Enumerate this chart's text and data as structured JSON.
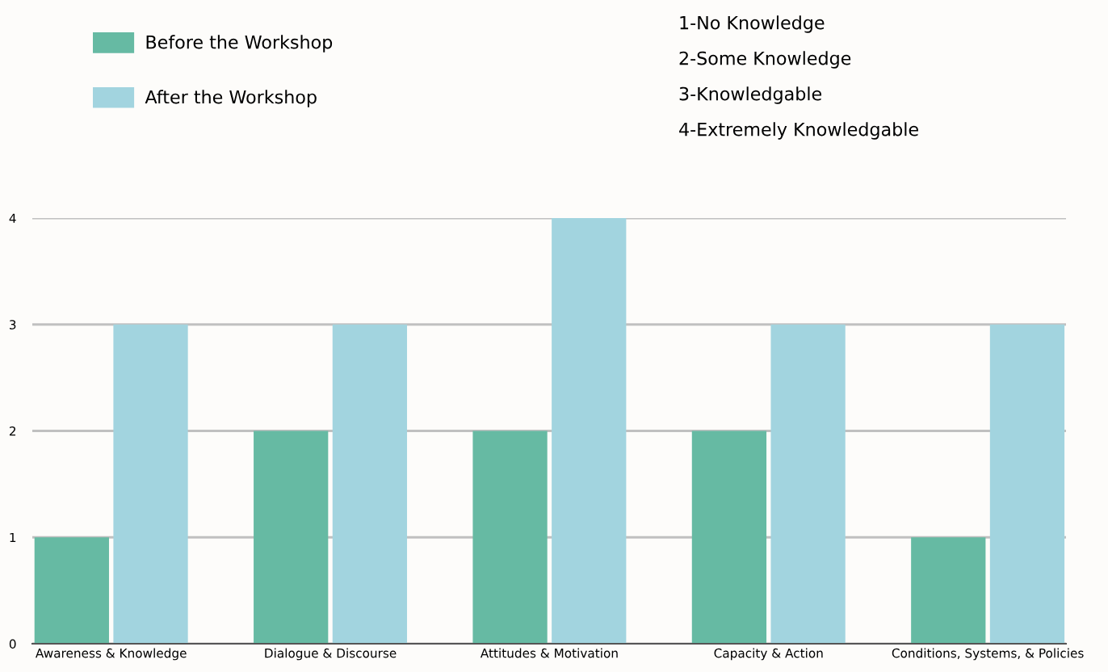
{
  "chart_data": {
    "type": "bar",
    "categories": [
      "Awareness & Knowledge",
      "Dialogue & Discourse",
      "Attitudes & Motivation",
      "Capacity & Action",
      "Conditions, Systems, & Policies"
    ],
    "series": [
      {
        "name": "Before the Workshop",
        "color": "#66baa3",
        "values": [
          1,
          2,
          2,
          2,
          1
        ]
      },
      {
        "name": "After the Workshop",
        "color": "#a2d4df",
        "values": [
          3,
          3,
          4,
          3,
          3
        ]
      }
    ],
    "ylim": [
      0,
      4
    ],
    "yticks": [
      0,
      1,
      2,
      3,
      4
    ],
    "grid": "y",
    "legend": "top left",
    "annotations": [
      "1-No Knowledge",
      "2-Some Knowledge",
      "3-Knowledgable",
      "4-Extremely Knowledgable"
    ]
  }
}
